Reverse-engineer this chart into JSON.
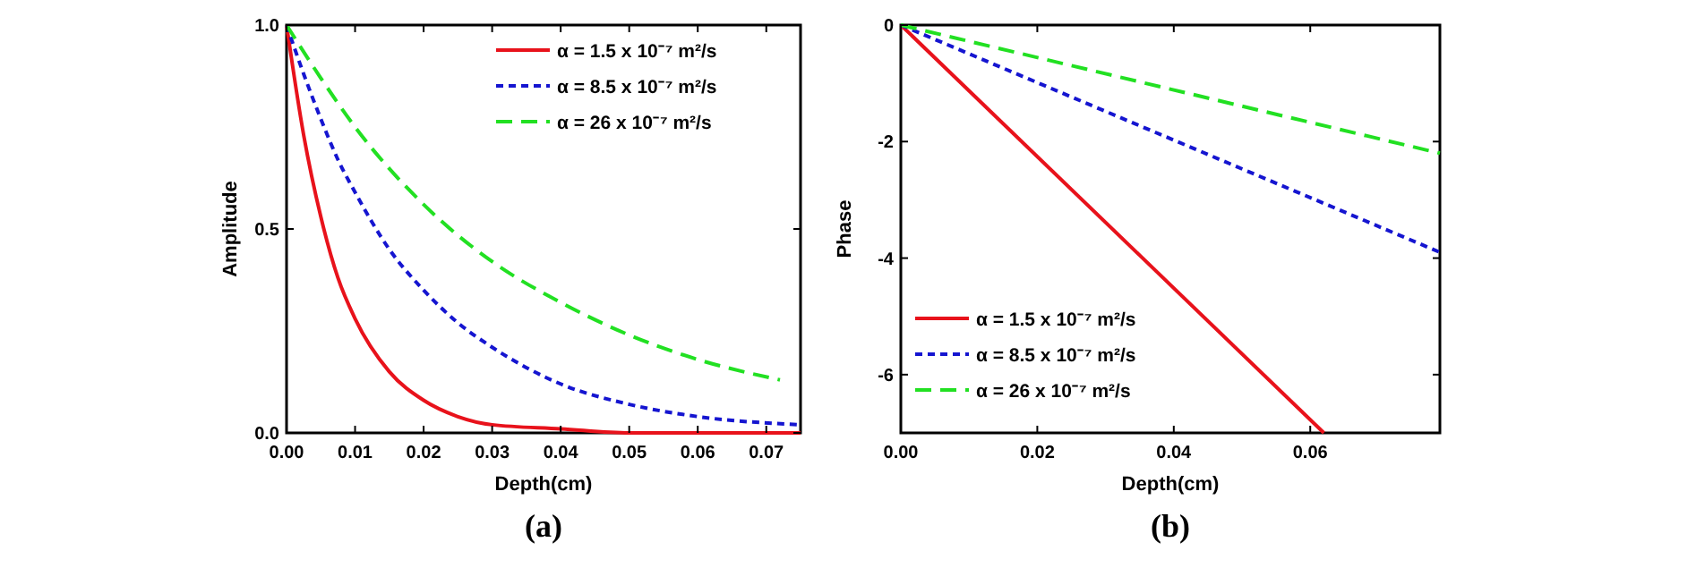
{
  "chart_data": [
    {
      "type": "line",
      "title": "(a)",
      "xlabel": "Depth(cm)",
      "ylabel": "Amplitude",
      "xlim": [
        0,
        0.075
      ],
      "ylim": [
        0,
        1
      ],
      "xticks": [
        {
          "value": 0,
          "label": "0.00"
        },
        {
          "value": 0.01,
          "label": "0.01"
        },
        {
          "value": 0.02,
          "label": "0.02"
        },
        {
          "value": 0.03,
          "label": "0.03"
        },
        {
          "value": 0.04,
          "label": "0.04"
        },
        {
          "value": 0.05,
          "label": "0.05"
        },
        {
          "value": 0.06,
          "label": "0.06"
        },
        {
          "value": 0.07,
          "label": "0.07"
        }
      ],
      "yticks": [
        {
          "value": 0,
          "label": "0.0"
        },
        {
          "value": 0.5,
          "label": "0.5"
        },
        {
          "value": 1,
          "label": "1.0"
        }
      ],
      "grid": false,
      "legend": "top right",
      "marker": "none",
      "series": [
        {
          "name": "α = 1.5 x 10⁻⁷ m²/s",
          "color": "#e8121b",
          "line_style": "solid",
          "x": [
            0,
            0.0025,
            0.005,
            0.0075,
            0.01,
            0.015,
            0.02,
            0.025,
            0.03,
            0.04,
            0.05,
            0.06,
            0.075
          ],
          "values": [
            1,
            0.73,
            0.53,
            0.38,
            0.28,
            0.15,
            0.08,
            0.04,
            0.02,
            0.01,
            0,
            0,
            0
          ]
        },
        {
          "name": "α = 8.5 x 10⁻⁷ m²/s",
          "color": "#1515d0",
          "line_style": "dotted",
          "x": [
            0,
            0.0025,
            0.005,
            0.0075,
            0.01,
            0.015,
            0.02,
            0.025,
            0.03,
            0.04,
            0.05,
            0.06,
            0.075
          ],
          "values": [
            1,
            0.88,
            0.77,
            0.67,
            0.59,
            0.45,
            0.35,
            0.27,
            0.21,
            0.12,
            0.07,
            0.04,
            0.02
          ]
        },
        {
          "name": "α = 26 x 10⁻⁷ m²/s",
          "color": "#22e022",
          "line_style": "dashed",
          "x": [
            0,
            0.005,
            0.01,
            0.02,
            0.03,
            0.04,
            0.05,
            0.06,
            0.072
          ],
          "values": [
            1,
            0.87,
            0.75,
            0.56,
            0.42,
            0.32,
            0.24,
            0.18,
            0.13
          ]
        }
      ]
    },
    {
      "type": "line",
      "title": "(b)",
      "xlabel": "Depth(cm)",
      "ylabel": "Phase",
      "xlim": [
        0,
        0.079
      ],
      "ylim": [
        -7,
        0
      ],
      "xticks": [
        {
          "value": 0,
          "label": "0.00"
        },
        {
          "value": 0.02,
          "label": "0.02"
        },
        {
          "value": 0.04,
          "label": "0.04"
        },
        {
          "value": 0.06,
          "label": "0.06"
        }
      ],
      "yticks": [
        0,
        -2,
        -4,
        -6
      ],
      "grid": false,
      "legend": "bottom left",
      "marker": "none",
      "series": [
        {
          "name": "α = 1.5 x 10⁻⁷ m²/s",
          "color": "#e8121b",
          "line_style": "solid",
          "x": [
            0,
            0.062
          ],
          "values": [
            0,
            -7
          ]
        },
        {
          "name": "α = 8.5 x 10⁻⁷ m²/s",
          "color": "#1515d0",
          "line_style": "dotted",
          "x": [
            0,
            0.079
          ],
          "values": [
            0,
            -3.9
          ]
        },
        {
          "name": "α = 26 x 10⁻⁷ m²/s",
          "color": "#22e022",
          "line_style": "dashed",
          "x": [
            0,
            0.079
          ],
          "values": [
            0,
            -2.2
          ]
        }
      ]
    }
  ]
}
